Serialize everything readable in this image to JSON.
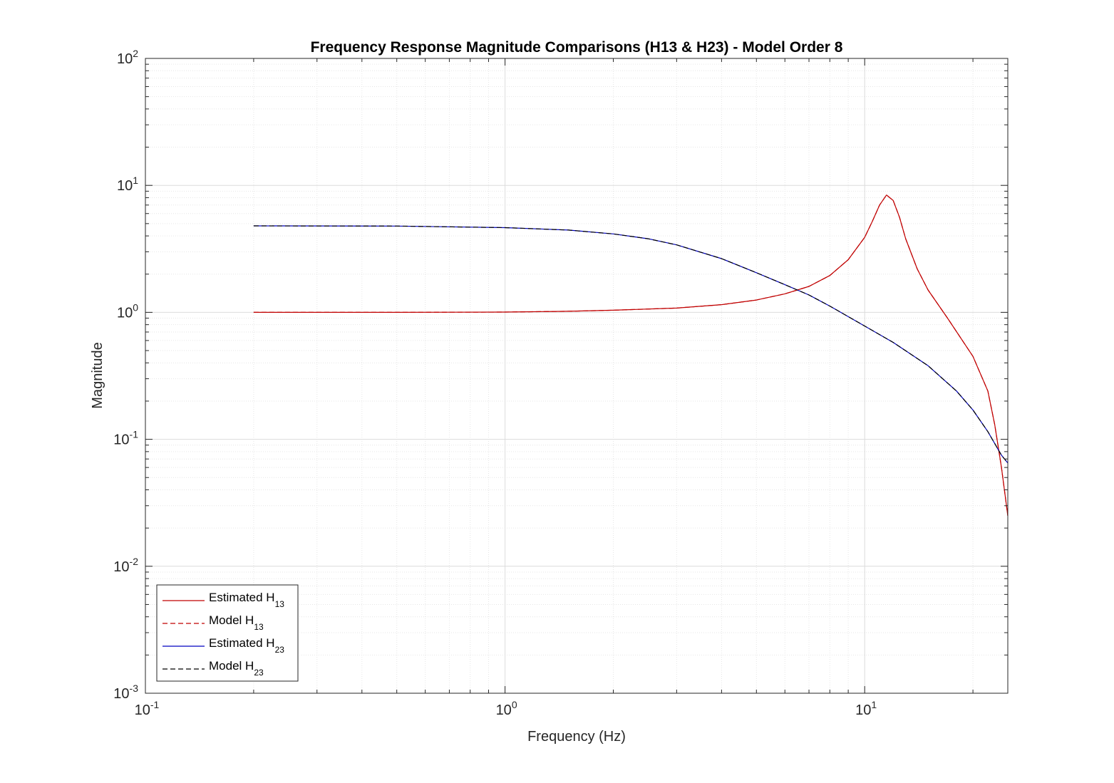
{
  "chart_data": {
    "type": "line",
    "title": "Frequency Response Magnitude Comparisons (H13 & H23) - Model Order 8",
    "xlabel": "Frequency (Hz)",
    "ylabel": "Magnitude",
    "xscale": "log",
    "yscale": "log",
    "xlim": [
      0.1,
      25
    ],
    "ylim": [
      0.001,
      100
    ],
    "grid": true,
    "minor_grid": true,
    "legend_position": "bottom-left",
    "x_ticks": [
      {
        "base": "10",
        "exp": "-1",
        "value": 0.1
      },
      {
        "base": "10",
        "exp": "0",
        "value": 1
      },
      {
        "base": "10",
        "exp": "1",
        "value": 10
      }
    ],
    "y_ticks": [
      {
        "base": "10",
        "exp": "-3",
        "value": 0.001
      },
      {
        "base": "10",
        "exp": "-2",
        "value": 0.01
      },
      {
        "base": "10",
        "exp": "-1",
        "value": 0.1
      },
      {
        "base": "10",
        "exp": "0",
        "value": 1
      },
      {
        "base": "10",
        "exp": "1",
        "value": 10
      },
      {
        "base": "10",
        "exp": "2",
        "value": 100
      }
    ],
    "series": [
      {
        "name": "Estimated H13",
        "legend_main": "Estimated H",
        "legend_sub": "13",
        "color": "#c00000",
        "dash": "solid",
        "x": [
          0.2,
          0.5,
          1,
          1.5,
          2,
          3,
          4,
          5,
          6,
          7,
          8,
          9,
          10,
          10.5,
          11,
          11.5,
          12,
          12.5,
          13,
          14,
          15,
          17,
          20,
          22,
          23,
          24,
          25
        ],
        "y": [
          1.0,
          1.0,
          1.005,
          1.02,
          1.04,
          1.08,
          1.15,
          1.25,
          1.4,
          1.6,
          1.95,
          2.6,
          3.9,
          5.2,
          7.0,
          8.4,
          7.6,
          5.6,
          3.8,
          2.2,
          1.5,
          0.9,
          0.45,
          0.24,
          0.13,
          0.06,
          0.025
        ]
      },
      {
        "name": "Model H13",
        "legend_main": "Model H",
        "legend_sub": "13",
        "color": "#c00000",
        "dash": "dashed",
        "x": [
          0.2,
          0.5,
          1,
          1.5,
          2,
          3,
          4,
          5,
          6,
          7,
          8,
          9,
          10,
          10.5,
          11,
          11.5,
          12,
          12.5,
          13,
          14,
          15,
          17,
          20,
          22,
          23,
          24,
          25
        ],
        "y": [
          1.0,
          1.0,
          1.005,
          1.02,
          1.04,
          1.08,
          1.15,
          1.25,
          1.4,
          1.6,
          1.95,
          2.6,
          3.9,
          5.2,
          7.0,
          8.4,
          7.6,
          5.6,
          3.8,
          2.2,
          1.5,
          0.9,
          0.45,
          0.24,
          0.13,
          0.06,
          0.025
        ]
      },
      {
        "name": "Estimated H23",
        "legend_main": "Estimated H",
        "legend_sub": "23",
        "color": "#0000c0",
        "dash": "solid",
        "x": [
          0.2,
          0.5,
          1,
          1.5,
          2,
          2.5,
          3,
          4,
          5,
          6,
          7,
          8,
          10,
          12,
          15,
          18,
          20,
          22,
          24,
          25
        ],
        "y": [
          4.8,
          4.78,
          4.65,
          4.45,
          4.15,
          3.8,
          3.4,
          2.65,
          2.05,
          1.65,
          1.37,
          1.12,
          0.78,
          0.58,
          0.38,
          0.24,
          0.17,
          0.115,
          0.075,
          0.065
        ]
      },
      {
        "name": "Model H23",
        "legend_main": "Model H",
        "legend_sub": "23",
        "color": "#000000",
        "dash": "dashed",
        "x": [
          0.2,
          0.5,
          1,
          1.5,
          2,
          2.5,
          3,
          4,
          5,
          6,
          7,
          8,
          10,
          12,
          15,
          18,
          20,
          22,
          24,
          25
        ],
        "y": [
          4.8,
          4.78,
          4.65,
          4.45,
          4.15,
          3.8,
          3.4,
          2.65,
          2.05,
          1.65,
          1.37,
          1.12,
          0.78,
          0.58,
          0.38,
          0.24,
          0.17,
          0.115,
          0.075,
          0.065
        ]
      }
    ]
  }
}
